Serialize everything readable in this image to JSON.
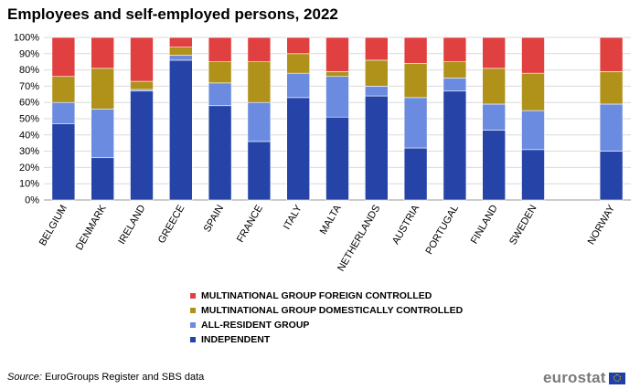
{
  "title": "Employees and self-employed persons, 2022",
  "chart_data": {
    "type": "bar",
    "stacked": true,
    "title": "Employees and self-employed persons, 2022",
    "xlabel": "",
    "ylabel": "",
    "ylim": [
      0,
      100
    ],
    "y_ticks": [
      "0%",
      "10%",
      "20%",
      "30%",
      "40%",
      "50%",
      "60%",
      "70%",
      "80%",
      "90%",
      "100%"
    ],
    "grid": true,
    "categories": [
      "BELGIUM",
      "DENMARK",
      "IRELAND",
      "GREECE",
      "SPAIN",
      "FRANCE",
      "ITALY",
      "MALTA",
      "NETHERLANDS",
      "AUSTRIA",
      "PORTUGAL",
      "FINLAND",
      "SWEDEN",
      "",
      "NORWAY"
    ],
    "series": [
      {
        "name": "INDEPENDENT",
        "color": "#2644a8",
        "values": [
          47,
          26,
          67,
          86,
          58,
          36,
          63,
          51,
          64,
          32,
          67,
          43,
          31,
          null,
          30
        ]
      },
      {
        "name": "ALL-RESIDENT GROUP",
        "color": "#6b8be0",
        "values": [
          13,
          30,
          1,
          3,
          14,
          24,
          15,
          25,
          6,
          31,
          8,
          16,
          24,
          null,
          29
        ]
      },
      {
        "name": "MULTINATIONAL GROUP DOMESTICALLY CONTROLLED",
        "color": "#b0921b",
        "values": [
          16,
          25,
          5,
          5,
          13,
          25,
          12,
          3,
          16,
          21,
          10,
          22,
          23,
          null,
          20
        ]
      },
      {
        "name": "MULTINATIONAL GROUP FOREIGN CONTROLLED",
        "color": "#e04040",
        "values": [
          24,
          19,
          27,
          6,
          15,
          15,
          10,
          21,
          14,
          16,
          15,
          19,
          22,
          null,
          21
        ]
      }
    ],
    "legend_position": "bottom-center"
  },
  "source": {
    "label": "Source:",
    "text": " EuroGroups Register and SBS data"
  },
  "logo": {
    "text": "eurostat"
  }
}
